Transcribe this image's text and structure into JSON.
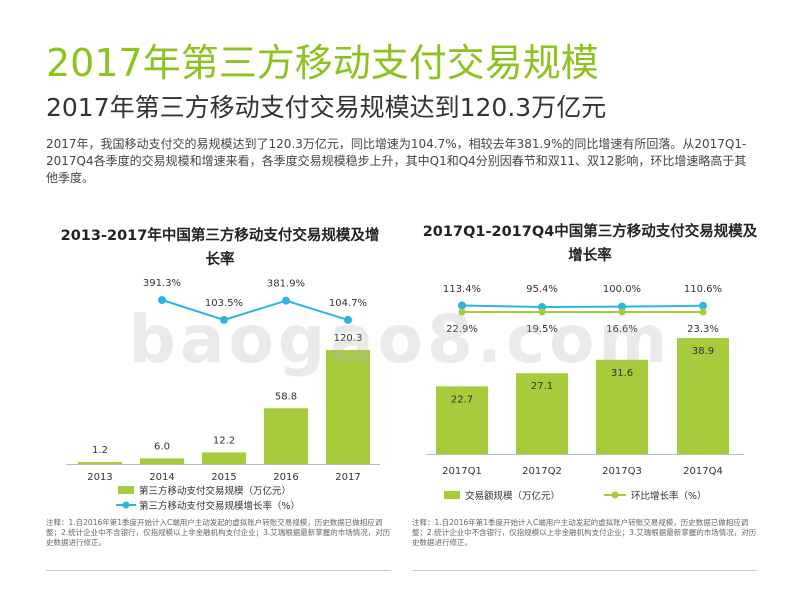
{
  "page": {
    "title": "2017年第三方移动支付交易规模",
    "subtitle": "2017年第三方移动支付交易规模达到120.3万亿元",
    "description": "2017年，我国移动支付交的易规模达到了120.3万亿元，同比增速为104.7%，相较去年381.9%的同比增速有所回落。从2017Q1-2017Q4各季度的交易规模和增速来看，各季度交易规模稳步上升，其中Q1和Q4分别因春节和双11、双12影响，环比增速略高于其他季度。",
    "watermark": "baogao8.com",
    "note1": "注释：1.自2016年第1季度开始计入C端用户主动发起的虚拟账户转账交易规模，历史数据已做相应调整；2.统计企业中不含银行，仅指规模以上非金融机构支付企业；3.艾瑞根据最新掌握的市场情况，对历史数据进行修正。",
    "note2": "注释：1.自2016年第1季度开始计入C端用户主动发起的虚拟账户转账交易规模，历史数据已做相应调整；2.统计企业中不含银行，仅指规模以上非金融机构支付企业；3.艾瑞根据最新掌握的市场情况，对历史数据进行修正。"
  },
  "colors": {
    "accent": "#8dc21f",
    "bar": "#a6cc3c",
    "line1": "#2bb5e0",
    "line2": "#a6cc3c",
    "line2_dot_alt": "#2bb5e0"
  },
  "chart_data": [
    {
      "type": "bar",
      "title": "2013-2017年中国第三方移动支付交易规模及增长率",
      "categories": [
        "2013",
        "2014",
        "2015",
        "2016",
        "2017"
      ],
      "series": [
        {
          "name": "第三方移动支付交易规模（万亿元）",
          "type": "bar",
          "values": [
            1.2,
            6.0,
            12.2,
            58.8,
            120.3
          ],
          "labels": [
            "1.2",
            "6.0",
            "12.2",
            "58.8",
            "120.3"
          ]
        },
        {
          "name": "第三方移动支付交易规模增长率（%）",
          "type": "line",
          "values": [
            null,
            391.3,
            103.5,
            381.9,
            104.7
          ],
          "labels": [
            "",
            "391.3%",
            "103.5%",
            "381.9%",
            "104.7%"
          ]
        }
      ],
      "ylim": [
        0,
        130
      ],
      "y2lim": [
        0,
        420
      ],
      "grid": false,
      "legend": "bottom"
    },
    {
      "type": "bar",
      "title": "2017Q1-2017Q4中国第三方移动支付交易规模及增长率",
      "categories": [
        "2017Q1",
        "2017Q2",
        "2017Q3",
        "2017Q4"
      ],
      "series": [
        {
          "name": "交易额规模（万亿元）",
          "type": "bar",
          "values": [
            22.7,
            27.1,
            31.6,
            38.9
          ],
          "labels": [
            "22.7",
            "27.1",
            "31.6",
            "38.9"
          ]
        },
        {
          "type": "line",
          "values": [
            113.4,
            95.4,
            100.0,
            110.6
          ],
          "labels": [
            "113.4%",
            "95.4%",
            "100.0%",
            "110.6%"
          ]
        },
        {
          "name": "环比增长率（%）",
          "type": "line",
          "values": [
            22.9,
            19.5,
            16.6,
            23.3
          ],
          "labels": [
            "22.9%",
            "19.5%",
            "16.6%",
            "23.3%"
          ]
        }
      ],
      "ylim": [
        0,
        45
      ],
      "grid": false,
      "legend": "bottom"
    }
  ]
}
